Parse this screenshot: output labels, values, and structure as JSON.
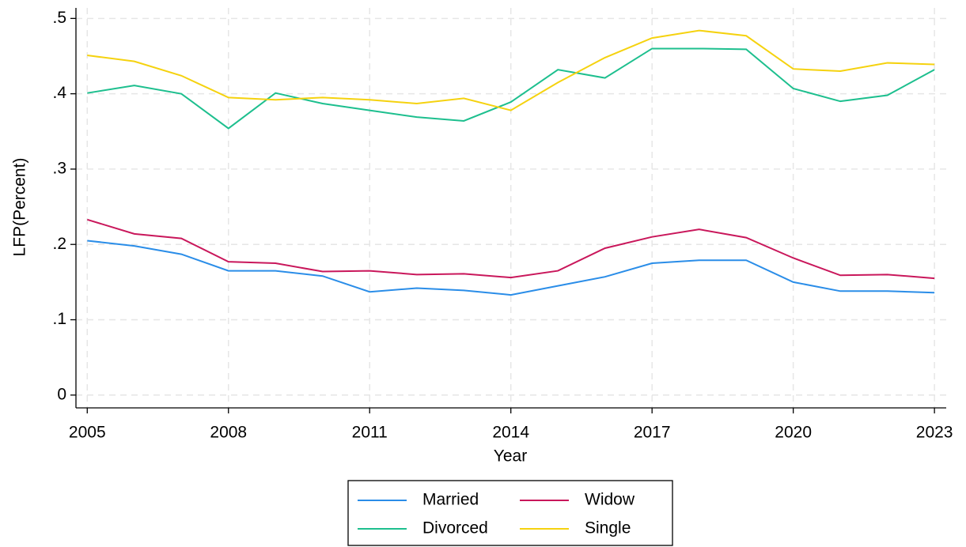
{
  "chart_data": {
    "type": "line",
    "x": [
      2005,
      2006,
      2007,
      2008,
      2009,
      2010,
      2011,
      2012,
      2013,
      2014,
      2015,
      2016,
      2017,
      2018,
      2019,
      2020,
      2021,
      2022,
      2023
    ],
    "series": [
      {
        "name": "Married",
        "color": "#2a8de8",
        "values": [
          0.205,
          0.198,
          0.187,
          0.165,
          0.165,
          0.158,
          0.137,
          0.142,
          0.139,
          0.133,
          0.145,
          0.157,
          0.175,
          0.179,
          0.179,
          0.15,
          0.138,
          0.138,
          0.136
        ]
      },
      {
        "name": "Widow",
        "color": "#c9175b",
        "values": [
          0.233,
          0.214,
          0.208,
          0.177,
          0.175,
          0.164,
          0.165,
          0.16,
          0.161,
          0.156,
          0.165,
          0.195,
          0.21,
          0.22,
          0.209,
          0.182,
          0.159,
          0.16,
          0.155
        ]
      },
      {
        "name": "Divorced",
        "color": "#1dbf8e",
        "values": [
          0.401,
          0.411,
          0.4,
          0.354,
          0.401,
          0.387,
          0.378,
          0.369,
          0.364,
          0.389,
          0.432,
          0.421,
          0.46,
          0.46,
          0.459,
          0.407,
          0.39,
          0.398,
          0.432
        ]
      },
      {
        "name": "Single",
        "color": "#f5d20f",
        "values": [
          0.451,
          0.443,
          0.424,
          0.395,
          0.392,
          0.395,
          0.392,
          0.387,
          0.394,
          0.378,
          0.415,
          0.448,
          0.474,
          0.484,
          0.477,
          0.433,
          0.43,
          0.441,
          0.439
        ]
      }
    ],
    "x_label": "Year",
    "y_label": "LFP(Percent)",
    "xlim": [
      2004.76,
      2023.25
    ],
    "xticks": [
      2005,
      2008,
      2011,
      2014,
      2017,
      2020,
      2023
    ],
    "ylim": [
      -0.017,
      0.514
    ],
    "yticks": [
      0,
      {
        "value": 0.1,
        "label": ".1"
      },
      {
        "value": 0.2,
        "label": ".2"
      },
      {
        "value": 0.3,
        "label": ".3"
      },
      {
        "value": 0.4,
        "label": ".4"
      },
      {
        "value": 0.5,
        "label": ".5"
      }
    ],
    "grid": true,
    "legend": "bottom"
  }
}
